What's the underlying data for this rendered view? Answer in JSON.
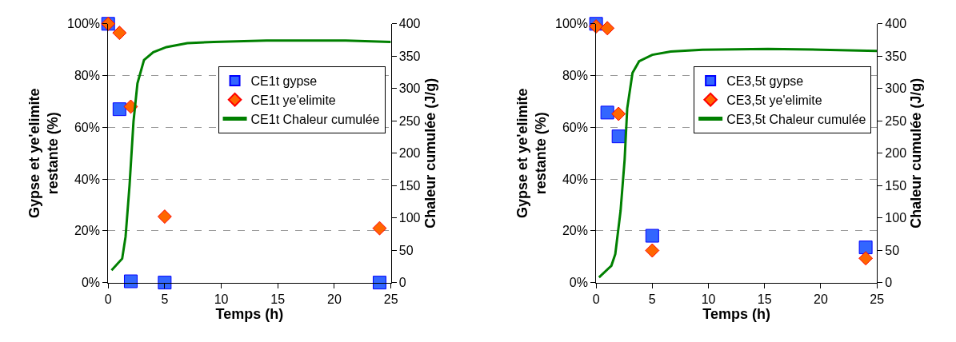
{
  "chart_data": [
    {
      "type": "scatter",
      "xlabel": "Temps (h)",
      "ylabel": "Gypse et ye'elimite\nrestante (%)",
      "y2label": "Chaleur cumulée (J/g)",
      "xlim": [
        0,
        25
      ],
      "xticks": [
        0,
        5,
        10,
        15,
        20,
        25
      ],
      "ylim": [
        0,
        100
      ],
      "yticks": [
        {
          "value": 0,
          "label": "0%"
        },
        {
          "value": 20,
          "label": "20%"
        },
        {
          "value": 40,
          "label": "40%"
        },
        {
          "value": 60,
          "label": "60%"
        },
        {
          "value": 80,
          "label": "80%"
        },
        {
          "value": 100,
          "label": "100%"
        }
      ],
      "y2lim": [
        0,
        400
      ],
      "y2ticks": [
        0,
        50,
        100,
        150,
        200,
        250,
        300,
        350,
        400
      ],
      "grid": "y",
      "legend": "top right",
      "series": [
        {
          "name": "CE1t gypse",
          "marker": "square",
          "color": "#3366ff",
          "x": [
            0,
            1,
            2,
            5,
            24
          ],
          "values": [
            100,
            67,
            0.5,
            0,
            0
          ]
        },
        {
          "name": "CE1t ye'elimite",
          "marker": "diamond",
          "color": "#ff6600",
          "x": [
            0,
            1,
            2,
            5,
            24
          ],
          "values": [
            100,
            96.5,
            68,
            25.5,
            21
          ]
        },
        {
          "name": "CE1t Chaleur cumulée",
          "type": "line",
          "axis": "y2",
          "color": "#008000",
          "line_style": "solid",
          "marker": "none",
          "x": [
            0.3,
            1.24,
            1.54,
            1.89,
            2.24,
            2.59,
            3.17,
            3.99,
            5.15,
            7.0,
            9.35,
            14,
            21,
            25
          ],
          "values": [
            19,
            37,
            71,
            150,
            249,
            308,
            344,
            356,
            364,
            370,
            372,
            374,
            374,
            372
          ]
        }
      ]
    },
    {
      "type": "scatter",
      "xlabel": "Temps (h)",
      "ylabel": "Gypse et ye'elimite\nrestante (%)",
      "y2label": "Chaleur cumulée (J/g)",
      "xlim": [
        0,
        25
      ],
      "xticks": [
        0,
        5,
        10,
        15,
        20,
        25
      ],
      "ylim": [
        0,
        100
      ],
      "yticks": [
        {
          "value": 0,
          "label": "0%"
        },
        {
          "value": 20,
          "label": "20%"
        },
        {
          "value": 40,
          "label": "40%"
        },
        {
          "value": 60,
          "label": "60%"
        },
        {
          "value": 80,
          "label": "80%"
        },
        {
          "value": 100,
          "label": "100%"
        }
      ],
      "y2lim": [
        0,
        400
      ],
      "y2ticks": [
        0,
        50,
        100,
        150,
        200,
        250,
        300,
        350,
        400
      ],
      "grid": "y",
      "legend": "top right",
      "series": [
        {
          "name": "CE3,5t gypse",
          "marker": "square",
          "color": "#3366ff",
          "x": [
            0,
            1,
            2,
            5,
            24
          ],
          "values": [
            100,
            65.7,
            56.5,
            18.1,
            13.6
          ]
        },
        {
          "name": "CE3,5t ye'elimite",
          "marker": "diamond",
          "color": "#ff6600",
          "x": [
            0,
            1,
            2,
            5,
            24
          ],
          "values": [
            99,
            98.3,
            65.2,
            12.4,
            9.4
          ]
        },
        {
          "name": "CE3,5t Chaleur cumulée",
          "type": "line",
          "axis": "y2",
          "color": "#008000",
          "line_style": "solid",
          "marker": "none",
          "x": [
            0.26,
            1.36,
            1.71,
            2.18,
            2.54,
            2.77,
            3.24,
            3.83,
            5.0,
            6.64,
            9.46,
            15.3,
            20,
            25
          ],
          "values": [
            8,
            26,
            44,
            111,
            190,
            269,
            324,
            342,
            352,
            357,
            360,
            361,
            360,
            358
          ]
        }
      ]
    }
  ]
}
